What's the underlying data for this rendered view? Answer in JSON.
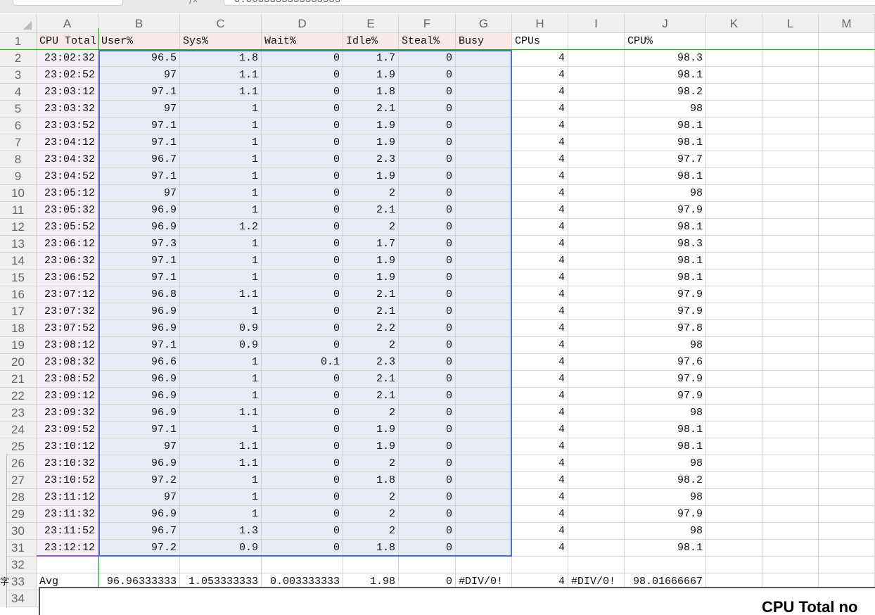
{
  "formula_bar": {
    "value": "0.0033333333333333"
  },
  "columns": [
    "A",
    "B",
    "C",
    "D",
    "E",
    "F",
    "G",
    "H",
    "I",
    "J",
    "K",
    "L",
    "M"
  ],
  "header_row": [
    "CPU Total",
    "User%",
    "Sys%",
    "Wait%",
    "Idle%",
    "Steal%",
    "Busy",
    "CPUs",
    "",
    "CPU%",
    "",
    "",
    ""
  ],
  "rows": [
    [
      "23:02:32",
      "96.5",
      "1.8",
      "0",
      "1.7",
      "0",
      "",
      "4",
      "",
      "98.3"
    ],
    [
      "23:02:52",
      "97",
      "1.1",
      "0",
      "1.9",
      "0",
      "",
      "4",
      "",
      "98.1"
    ],
    [
      "23:03:12",
      "97.1",
      "1.1",
      "0",
      "1.8",
      "0",
      "",
      "4",
      "",
      "98.2"
    ],
    [
      "23:03:32",
      "97",
      "1",
      "0",
      "2.1",
      "0",
      "",
      "4",
      "",
      "98"
    ],
    [
      "23:03:52",
      "97.1",
      "1",
      "0",
      "1.9",
      "0",
      "",
      "4",
      "",
      "98.1"
    ],
    [
      "23:04:12",
      "97.1",
      "1",
      "0",
      "1.9",
      "0",
      "",
      "4",
      "",
      "98.1"
    ],
    [
      "23:04:32",
      "96.7",
      "1",
      "0",
      "2.3",
      "0",
      "",
      "4",
      "",
      "97.7"
    ],
    [
      "23:04:52",
      "97.1",
      "1",
      "0",
      "1.9",
      "0",
      "",
      "4",
      "",
      "98.1"
    ],
    [
      "23:05:12",
      "97",
      "1",
      "0",
      "2",
      "0",
      "",
      "4",
      "",
      "98"
    ],
    [
      "23:05:32",
      "96.9",
      "1",
      "0",
      "2.1",
      "0",
      "",
      "4",
      "",
      "97.9"
    ],
    [
      "23:05:52",
      "96.9",
      "1.2",
      "0",
      "2",
      "0",
      "",
      "4",
      "",
      "98.1"
    ],
    [
      "23:06:12",
      "97.3",
      "1",
      "0",
      "1.7",
      "0",
      "",
      "4",
      "",
      "98.3"
    ],
    [
      "23:06:32",
      "97.1",
      "1",
      "0",
      "1.9",
      "0",
      "",
      "4",
      "",
      "98.1"
    ],
    [
      "23:06:52",
      "97.1",
      "1",
      "0",
      "1.9",
      "0",
      "",
      "4",
      "",
      "98.1"
    ],
    [
      "23:07:12",
      "96.8",
      "1.1",
      "0",
      "2.1",
      "0",
      "",
      "4",
      "",
      "97.9"
    ],
    [
      "23:07:32",
      "96.9",
      "1",
      "0",
      "2.1",
      "0",
      "",
      "4",
      "",
      "97.9"
    ],
    [
      "23:07:52",
      "96.9",
      "0.9",
      "0",
      "2.2",
      "0",
      "",
      "4",
      "",
      "97.8"
    ],
    [
      "23:08:12",
      "97.1",
      "0.9",
      "0",
      "2",
      "0",
      "",
      "4",
      "",
      "98"
    ],
    [
      "23:08:32",
      "96.6",
      "1",
      "0.1",
      "2.3",
      "0",
      "",
      "4",
      "",
      "97.6"
    ],
    [
      "23:08:52",
      "96.9",
      "1",
      "0",
      "2.1",
      "0",
      "",
      "4",
      "",
      "97.9"
    ],
    [
      "23:09:12",
      "96.9",
      "1",
      "0",
      "2.1",
      "0",
      "",
      "4",
      "",
      "97.9"
    ],
    [
      "23:09:32",
      "96.9",
      "1.1",
      "0",
      "2",
      "0",
      "",
      "4",
      "",
      "98"
    ],
    [
      "23:09:52",
      "97.1",
      "1",
      "0",
      "1.9",
      "0",
      "",
      "4",
      "",
      "98.1"
    ],
    [
      "23:10:12",
      "97",
      "1.1",
      "0",
      "1.9",
      "0",
      "",
      "4",
      "",
      "98.1"
    ],
    [
      "23:10:32",
      "96.9",
      "1.1",
      "0",
      "2",
      "0",
      "",
      "4",
      "",
      "98"
    ],
    [
      "23:10:52",
      "97.2",
      "1",
      "0",
      "1.8",
      "0",
      "",
      "4",
      "",
      "98.2"
    ],
    [
      "23:11:12",
      "97",
      "1",
      "0",
      "2",
      "0",
      "",
      "4",
      "",
      "98"
    ],
    [
      "23:11:32",
      "96.9",
      "1",
      "0",
      "2",
      "0",
      "",
      "4",
      "",
      "97.9"
    ],
    [
      "23:11:52",
      "96.7",
      "1.3",
      "0",
      "2",
      "0",
      "",
      "4",
      "",
      "98"
    ],
    [
      "23:12:12",
      "97.2",
      "0.9",
      "0",
      "1.8",
      "0",
      "",
      "4",
      "",
      "98.1"
    ]
  ],
  "avg_row": [
    "Avg",
    "96.96333333",
    "1.053333333",
    "0.003333333",
    "1.98",
    "0",
    "#DIV/0!",
    "4",
    "#DIV/0!",
    "98.01666667"
  ],
  "chart": {
    "title": "CPU Total no"
  },
  "side_glyph": "字"
}
